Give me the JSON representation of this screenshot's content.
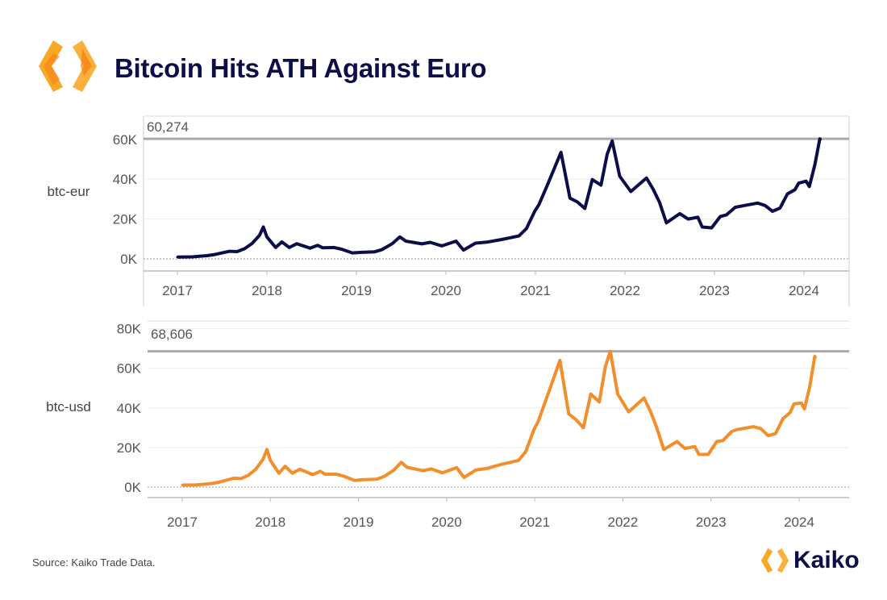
{
  "title": "Bitcoin Hits ATH Against Euro",
  "source": "Source: Kaiko Trade Data.",
  "brand": "Kaiko",
  "colors": {
    "eur": "#0d0d4a",
    "usd": "#f28e2b",
    "title": "#0d0d4a"
  },
  "chart_data": [
    {
      "type": "line",
      "series_label": "btc-eur",
      "ylim": [
        0,
        67000
      ],
      "yticks": [
        0,
        20000,
        40000,
        60000
      ],
      "ytick_labels": [
        "0K",
        "20K",
        "40K",
        "60K"
      ],
      "xticks": [
        "2017",
        "2018",
        "2019",
        "2020",
        "2021",
        "2022",
        "2023",
        "2024"
      ],
      "reference_line": 60274,
      "reference_label": "60,274",
      "color": "#0d0d4a",
      "dates": [
        "2017-01-01",
        "2017-03-01",
        "2017-05-01",
        "2017-06-01",
        "2017-08-01",
        "2017-09-01",
        "2017-10-01",
        "2017-11-01",
        "2017-12-01",
        "2017-12-17",
        "2018-01-01",
        "2018-02-06",
        "2018-03-01",
        "2018-04-01",
        "2018-05-01",
        "2018-06-25",
        "2018-07-25",
        "2018-08-15",
        "2018-10-01",
        "2018-11-01",
        "2018-12-15",
        "2019-01-15",
        "2019-03-15",
        "2019-04-15",
        "2019-05-25",
        "2019-06-26",
        "2019-07-20",
        "2019-09-25",
        "2019-10-28",
        "2019-12-15",
        "2020-02-12",
        "2020-03-12",
        "2020-04-30",
        "2020-06-15",
        "2020-08-15",
        "2020-10-25",
        "2020-11-25",
        "2020-12-28",
        "2021-01-15",
        "2021-02-20",
        "2021-04-14",
        "2021-05-20",
        "2021-06-20",
        "2021-07-20",
        "2021-08-20",
        "2021-09-25",
        "2021-10-20",
        "2021-11-10",
        "2021-12-10",
        "2022-01-25",
        "2022-03-28",
        "2022-04-25",
        "2022-05-20",
        "2022-06-18",
        "2022-08-12",
        "2022-09-15",
        "2022-10-25",
        "2022-11-12",
        "2022-12-20",
        "2023-01-25",
        "2023-02-20",
        "2023-03-25",
        "2023-04-15",
        "2023-06-25",
        "2023-07-25",
        "2023-08-25",
        "2023-09-25",
        "2023-10-25",
        "2023-11-25",
        "2023-12-10",
        "2024-01-10",
        "2024-01-23",
        "2024-02-15",
        "2024-03-05",
        "2024-03-08"
      ],
      "values": [
        950,
        1030,
        1600,
        2200,
        3800,
        3650,
        5100,
        7700,
        11800,
        16000,
        11000,
        5700,
        8500,
        5700,
        7600,
        5400,
        6800,
        5600,
        5700,
        4850,
        3000,
        3250,
        3550,
        4700,
        7600,
        11000,
        8900,
        7550,
        8300,
        6500,
        8900,
        4400,
        7900,
        8400,
        9700,
        11500,
        15200,
        23800,
        27200,
        37200,
        53500,
        30500,
        28600,
        25300,
        39800,
        37000,
        52600,
        59200,
        41500,
        33800,
        40600,
        35000,
        28500,
        18100,
        22700,
        20000,
        20900,
        16000,
        15600,
        21300,
        22100,
        25900,
        26400,
        28000,
        26800,
        23900,
        25500,
        32600,
        34700,
        38000,
        39000,
        36300,
        47200,
        60274,
        60100
      ]
    },
    {
      "type": "line",
      "series_label": "btc-usd",
      "ylim": [
        0,
        82000
      ],
      "yticks": [
        0,
        20000,
        40000,
        60000,
        80000
      ],
      "ytick_labels": [
        "0K",
        "20K",
        "40K",
        "60K",
        "80K"
      ],
      "xticks": [
        "2017",
        "2018",
        "2019",
        "2020",
        "2021",
        "2022",
        "2023",
        "2024"
      ],
      "reference_line": 68606,
      "reference_label": "68,606",
      "color": "#f28e2b",
      "values": [
        1000,
        1100,
        1800,
        2500,
        4500,
        4300,
        6000,
        9000,
        14000,
        19000,
        13500,
        7000,
        10500,
        7000,
        9000,
        6300,
        8000,
        6500,
        6500,
        5500,
        3400,
        3700,
        4000,
        5300,
        8500,
        12500,
        10000,
        8300,
        9200,
        7200,
        9800,
        4900,
        8600,
        9400,
        11500,
        13500,
        18000,
        29000,
        33000,
        45000,
        64000,
        37000,
        34000,
        30000,
        47000,
        43000,
        61000,
        68606,
        47000,
        38000,
        45000,
        38000,
        30000,
        19000,
        23000,
        19500,
        20500,
        16500,
        16500,
        23000,
        23500,
        28000,
        29000,
        30500,
        29500,
        26000,
        27000,
        34500,
        37700,
        42000,
        42500,
        39500,
        51000,
        66000,
        65500
      ]
    }
  ]
}
